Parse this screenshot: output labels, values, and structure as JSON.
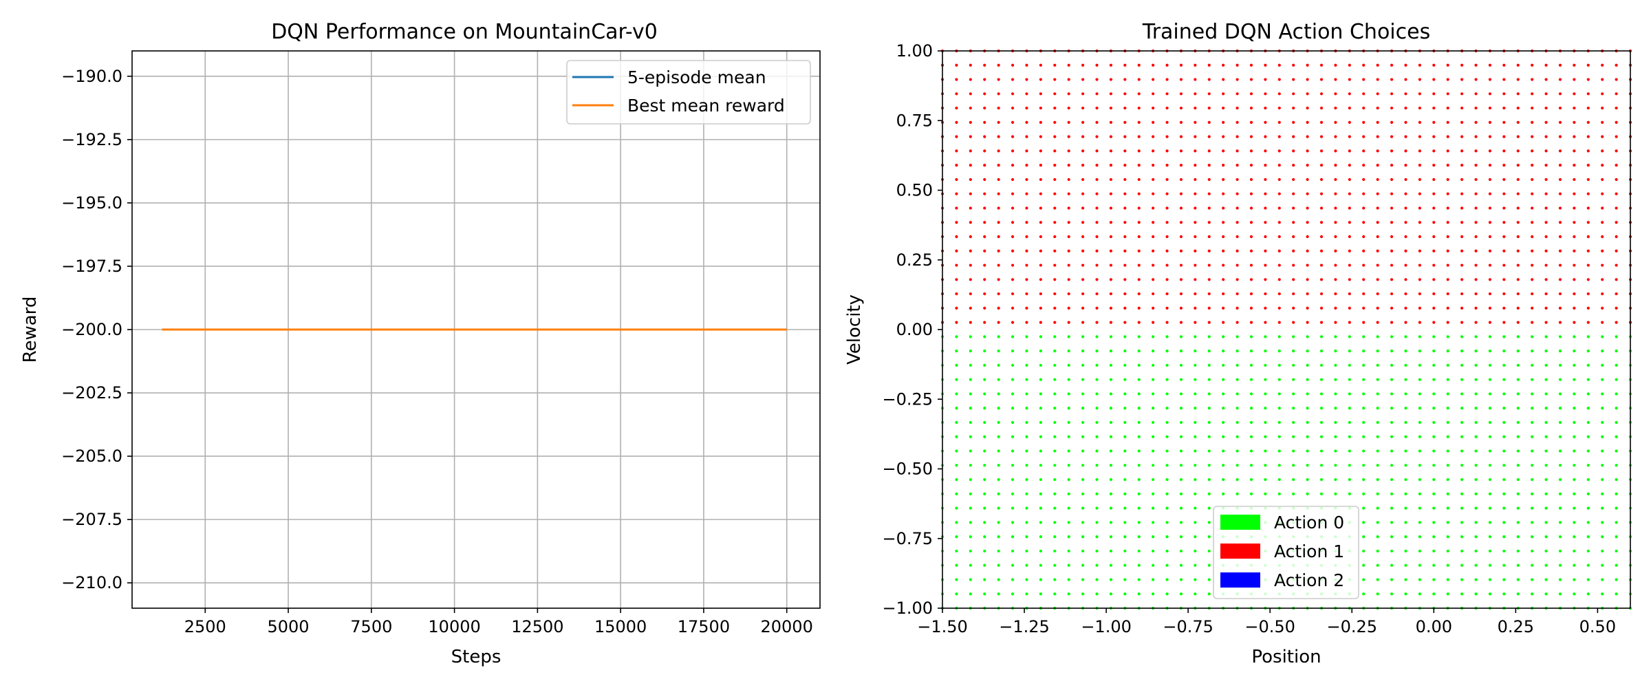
{
  "chart_data": [
    {
      "type": "line",
      "title": "DQN Performance on MountainCar-v0",
      "xlabel": "Steps",
      "ylabel": "Reward",
      "xlim": [
        300,
        21000
      ],
      "ylim": [
        -211,
        -189
      ],
      "x_ticks": [
        2500,
        5000,
        7500,
        10000,
        12500,
        15000,
        17500,
        20000
      ],
      "y_ticks": [
        -190.0,
        -192.5,
        -195.0,
        -197.5,
        -200.0,
        -202.5,
        -205.0,
        -207.5,
        -210.0
      ],
      "grid": true,
      "legend_position": "top-right",
      "series": [
        {
          "name": "5-episode mean",
          "color": "#1f77b4",
          "x": [
            1200,
            20000
          ],
          "y": [
            -200,
            -200
          ]
        },
        {
          "name": "Best mean reward",
          "color": "#ff7f0e",
          "x": [
            1200,
            20000
          ],
          "y": [
            -200,
            -200
          ]
        }
      ]
    },
    {
      "type": "scatter",
      "title": "Trained DQN Action Choices",
      "xlabel": "Position",
      "ylabel": "Velocity",
      "xlim": [
        -1.5,
        0.6
      ],
      "ylim": [
        -1.0,
        1.0
      ],
      "x_ticks": [
        -1.5,
        -1.25,
        -1.0,
        -0.75,
        -0.5,
        -0.25,
        0.0,
        0.25,
        0.5
      ],
      "y_ticks": [
        1.0,
        0.75,
        0.5,
        0.25,
        0.0,
        -0.25,
        -0.5,
        -0.75,
        -1.0
      ],
      "grid": false,
      "legend_position": "bottom-center",
      "grid_samples": {
        "positions": 50,
        "velocities": 40,
        "position_range": [
          -1.5,
          0.6
        ],
        "velocity_range": [
          -1.0,
          1.0
        ]
      },
      "action_rule": {
        "velocity_at_or_above_0": "Action 1",
        "velocity_below_0": "Action 0"
      },
      "legend": [
        {
          "name": "Action 0",
          "color": "#00ff00"
        },
        {
          "name": "Action 1",
          "color": "#ff0000"
        },
        {
          "name": "Action 2",
          "color": "#0000ff"
        }
      ]
    }
  ]
}
